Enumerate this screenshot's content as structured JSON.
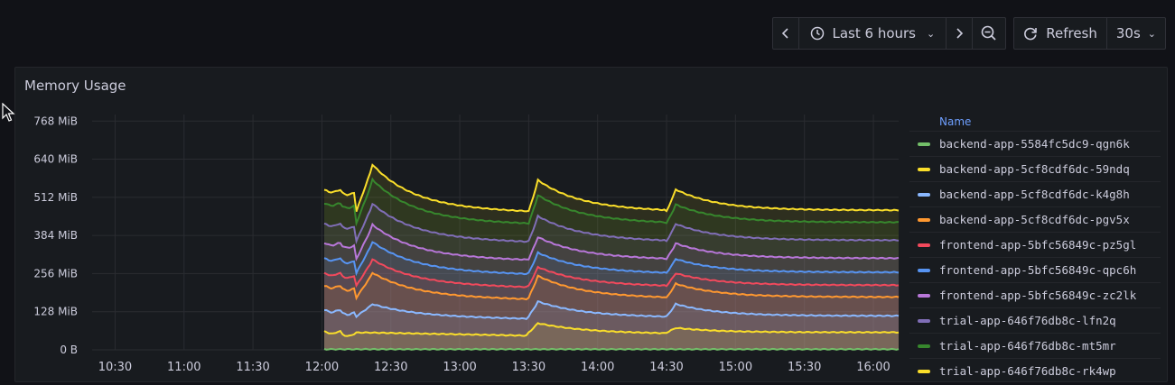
{
  "toolbar": {
    "prev_icon": "chevron-left-icon",
    "time_range": "Last 6 hours",
    "next_icon": "chevron-right-icon",
    "zoom_icon": "zoom-out-icon",
    "refresh_label": "Refresh",
    "refresh_interval": "30s"
  },
  "panel": {
    "title": "Memory Usage"
  },
  "legend": {
    "header": "Name"
  },
  "colors": {
    "background": "#111217",
    "panel": "#181b1f",
    "accent": "#6e9fff"
  },
  "chart_data": {
    "type": "area",
    "title": "Memory Usage",
    "y_unit": "MiB",
    "ylim": [
      0,
      790
    ],
    "y_ticks": [
      {
        "v": 0,
        "label": "0 B"
      },
      {
        "v": 128,
        "label": "128 MiB"
      },
      {
        "v": 256,
        "label": "256 MiB"
      },
      {
        "v": 384,
        "label": "384 MiB"
      },
      {
        "v": 512,
        "label": "512 MiB"
      },
      {
        "v": 640,
        "label": "640 MiB"
      },
      {
        "v": 768,
        "label": "768 MiB"
      }
    ],
    "x_ticks": [
      "10:30",
      "11:00",
      "11:30",
      "12:00",
      "12:30",
      "13:00",
      "13:30",
      "14:00",
      "14:30",
      "15:00",
      "15:30",
      "16:00"
    ],
    "x_tick_minutes": [
      630,
      660,
      690,
      720,
      750,
      780,
      810,
      840,
      870,
      900,
      930,
      960
    ],
    "xlim_minutes": [
      620,
      971
    ],
    "grid": true,
    "legend_position": "right",
    "series": [
      {
        "name": "backend-app-5584fc5dc9-qgn6k",
        "color": "#73bf69",
        "base": 2,
        "jumps": [
          0,
          0,
          0
        ]
      },
      {
        "name": "backend-app-5cf8cdf6dc-59ndq",
        "color": "#fade2a",
        "base": 58,
        "jumps": [
          0,
          30,
          15
        ]
      },
      {
        "name": "backend-app-5cf8cdf6dc-k4g8h",
        "color": "#8ab8ff",
        "base": 112,
        "jumps": [
          40,
          48,
          40
        ]
      },
      {
        "name": "backend-app-5cf8cdf6dc-pgv5x",
        "color": "#ff9830",
        "base": 175,
        "jumps": [
          80,
          70,
          45
        ]
      },
      {
        "name": "frontend-app-5bfc56849c-pz5gl",
        "color": "#f2495c",
        "base": 215,
        "jumps": [
          85,
          60,
          40
        ]
      },
      {
        "name": "frontend-app-5bfc56849c-qpc6h",
        "color": "#5794f2",
        "base": 258,
        "jumps": [
          100,
          65,
          45
        ]
      },
      {
        "name": "frontend-app-5bfc56849c-zc2lk",
        "color": "#b877d9",
        "base": 305,
        "jumps": [
          110,
          70,
          50
        ]
      },
      {
        "name": "trial-app-646f76db8c-lfn2q",
        "color": "#806eb7",
        "base": 365,
        "jumps": [
          120,
          80,
          55
        ]
      },
      {
        "name": "trial-app-646f76db8c-mt5mr",
        "color": "#37872d",
        "base": 425,
        "jumps": [
          140,
          90,
          60
        ]
      },
      {
        "name": "trial-app-646f76db8c-rk4wp",
        "color": "#fade2a",
        "base": 465,
        "jumps": [
          150,
          100,
          70
        ]
      }
    ]
  }
}
